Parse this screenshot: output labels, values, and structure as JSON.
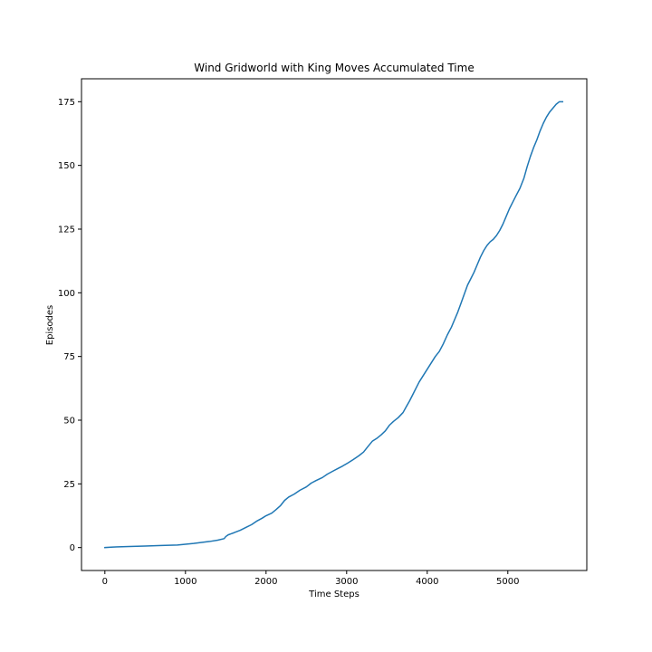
{
  "chart_data": {
    "type": "line",
    "title": "Wind Gridworld with King Moves Accumulated Time",
    "xlabel": "Time Steps",
    "ylabel": "Episodes",
    "xlim": [
      -290,
      5980
    ],
    "ylim": [
      -9,
      184
    ],
    "x_ticks": [
      0,
      1000,
      2000,
      3000,
      4000,
      5000
    ],
    "y_ticks": [
      0,
      25,
      50,
      75,
      100,
      125,
      150,
      175
    ],
    "grid": false,
    "colors": {
      "series": "#1f77b4"
    },
    "series": [
      {
        "x": [
          0,
          100,
          300,
          500,
          700,
          900,
          1000,
          1100,
          1200,
          1300,
          1400,
          1480,
          1500,
          1530,
          1600,
          1680,
          1750,
          1820,
          1880,
          1950,
          2000,
          2070,
          2120,
          2180,
          2230,
          2280,
          2350,
          2420,
          2500,
          2560,
          2620,
          2700,
          2760,
          2830,
          2890,
          2950,
          3020,
          3080,
          3150,
          3210,
          3260,
          3320,
          3380,
          3430,
          3480,
          3530,
          3580,
          3640,
          3700,
          3740,
          3780,
          3820,
          3860,
          3900,
          3940,
          3980,
          4020,
          4060,
          4100,
          4150,
          4200,
          4250,
          4300,
          4340,
          4380,
          4420,
          4460,
          4500,
          4540,
          4580,
          4620,
          4660,
          4700,
          4740,
          4780,
          4820,
          4860,
          4900,
          4940,
          4980,
          5020,
          5060,
          5100,
          5150,
          5200,
          5240,
          5280,
          5320,
          5360,
          5400,
          5440,
          5480,
          5520,
          5560,
          5600,
          5640,
          5680
        ],
        "y": [
          0,
          0.2,
          0.4,
          0.6,
          0.8,
          1.0,
          1.3,
          1.6,
          2.0,
          2.4,
          2.9,
          3.5,
          4.3,
          5.0,
          5.8,
          6.8,
          7.9,
          9.0,
          10.3,
          11.5,
          12.5,
          13.5,
          14.8,
          16.5,
          18.5,
          19.8,
          21.0,
          22.5,
          23.8,
          25.3,
          26.3,
          27.5,
          28.8,
          30.0,
          31.0,
          32.0,
          33.3,
          34.5,
          36.0,
          37.5,
          39.5,
          41.8,
          43.0,
          44.3,
          45.8,
          48.0,
          49.5,
          51.0,
          53.0,
          55.3,
          57.5,
          60.0,
          62.5,
          65.0,
          67.0,
          69.0,
          71.0,
          73.0,
          75.0,
          77.0,
          80.0,
          83.5,
          86.5,
          89.5,
          92.5,
          96.0,
          99.5,
          103.0,
          105.5,
          108.0,
          111.0,
          114.0,
          116.5,
          118.5,
          120.0,
          121.0,
          122.5,
          124.5,
          127.0,
          130.0,
          133.0,
          135.5,
          138.0,
          141.0,
          145.0,
          149.5,
          153.5,
          157.0,
          160.0,
          163.5,
          166.5,
          169.0,
          171.0,
          172.5,
          174.0,
          175.0,
          175.0
        ]
      }
    ]
  }
}
